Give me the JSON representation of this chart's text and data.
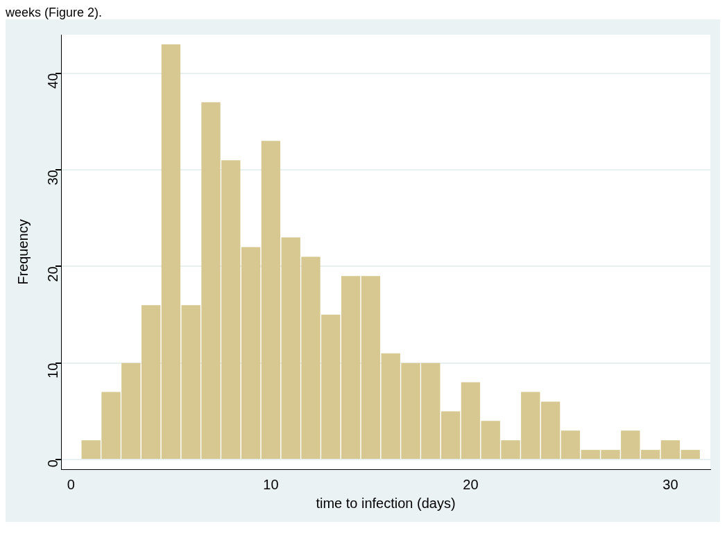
{
  "chart_data": {
    "type": "histogram",
    "annotations": [
      "weeks (Figure 2)."
    ],
    "xlabel": "time to infection (days)",
    "ylabel": "Frequency",
    "bins": [
      0.5,
      1.5,
      2.5,
      3.5,
      4.5,
      5.5,
      6.5,
      7.5,
      8.5,
      9.5,
      10.5,
      11.5,
      12.5,
      13.5,
      14.5,
      15.5,
      16.5,
      17.5,
      18.5,
      19.5,
      20.5,
      21.5,
      22.5,
      23.5,
      24.5,
      25.5,
      26.5,
      27.5,
      28.5,
      29.5,
      30.5,
      31.5
    ],
    "values": [
      2,
      7,
      10,
      16,
      43,
      16,
      37,
      31,
      22,
      33,
      23,
      21,
      15,
      19,
      19,
      11,
      10,
      10,
      5,
      8,
      4,
      2,
      7,
      6,
      3,
      1,
      1,
      3,
      1,
      2,
      1
    ],
    "color": "#d6c890",
    "xlim": [
      -0.5,
      32
    ],
    "xticks": [
      0,
      10,
      20,
      30
    ],
    "ylim": [
      -1,
      44
    ],
    "yticks": [
      0,
      10,
      20,
      30,
      40
    ],
    "grid": "y",
    "legend": false
  }
}
